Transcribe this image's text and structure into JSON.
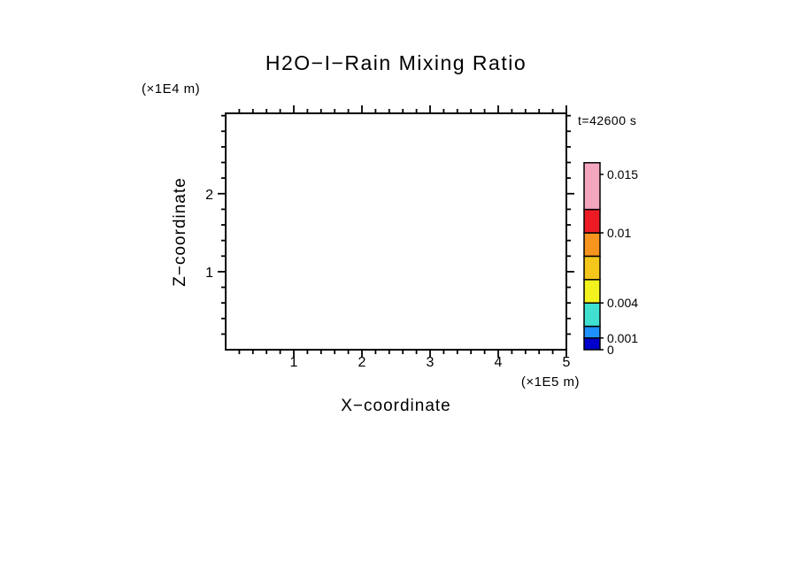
{
  "chart_data": {
    "type": "contour",
    "title": "H2O−I−Rain Mixing Ratio",
    "time_label": "t=42600 s",
    "xlabel": "X−coordinate",
    "x_units": "(×1E5 m)",
    "x_range": [
      0,
      5
    ],
    "x_major_ticks": [
      1,
      2,
      3,
      4,
      5
    ],
    "x_minor_step": 0.2,
    "ylabel": "Z−coordinate",
    "y_units": "(×1E4 m)",
    "y_range": [
      0,
      3.03
    ],
    "y_major_ticks": [
      1,
      2
    ],
    "y_minor_step": 0.2,
    "field_note": "plot area blank — no contour regions above lowest level",
    "colorbar": {
      "labels": [
        {
          "value": 0.015,
          "text": "0.015"
        },
        {
          "value": 0.01,
          "text": "0.01"
        },
        {
          "value": 0.004,
          "text": "0.004"
        },
        {
          "value": 0.001,
          "text": "0.001"
        },
        {
          "value": 0,
          "text": "0"
        }
      ],
      "segments": [
        {
          "from": 0,
          "to": 0.001,
          "color": "#0000CD"
        },
        {
          "from": 0.001,
          "to": 0.002,
          "color": "#1E90FF"
        },
        {
          "from": 0.002,
          "to": 0.004,
          "color": "#40E0D0"
        },
        {
          "from": 0.004,
          "to": 0.006,
          "color": "#F2F21E"
        },
        {
          "from": 0.006,
          "to": 0.008,
          "color": "#F5C71A"
        },
        {
          "from": 0.008,
          "to": 0.01,
          "color": "#F7941E"
        },
        {
          "from": 0.01,
          "to": 0.012,
          "color": "#ED1C24"
        },
        {
          "from": 0.012,
          "to": 0.016,
          "color": "#F4A6BE"
        }
      ]
    }
  }
}
